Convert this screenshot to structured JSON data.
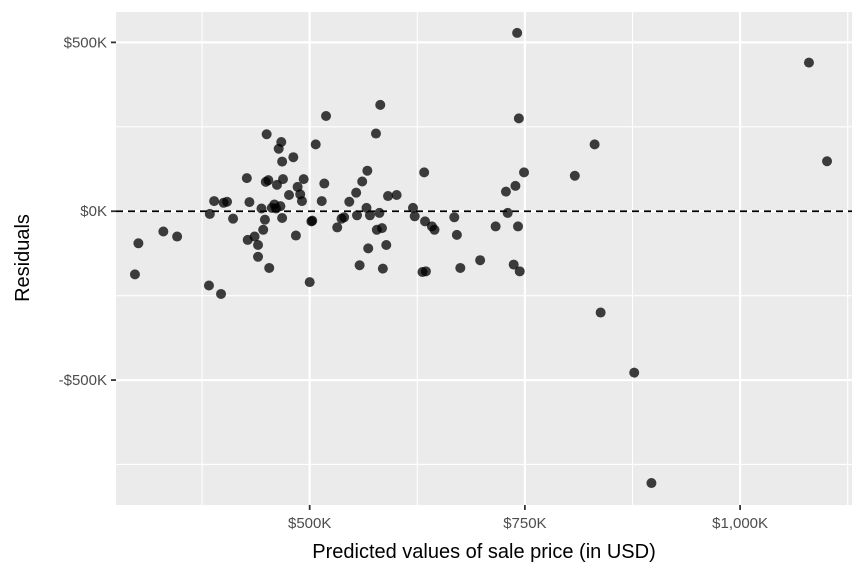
{
  "chart_data": {
    "type": "scatter",
    "title": "",
    "xlabel": "Predicted values of sale price (in USD)",
    "ylabel": "Residuals",
    "xlim": [
      275000,
      1130000
    ],
    "ylim": [
      -870000,
      590000
    ],
    "x_ticks": [
      {
        "value": 500000,
        "label": "$500K"
      },
      {
        "value": 750000,
        "label": "$750K"
      },
      {
        "value": 1000000,
        "label": "$1,000K"
      }
    ],
    "y_ticks": [
      {
        "value": 500000,
        "label": "$500K"
      },
      {
        "value": 0,
        "label": "$0K"
      },
      {
        "value": -500000,
        "label": "-$500K"
      }
    ],
    "reference_line": {
      "y": 0,
      "style": "dashed"
    },
    "grid": true,
    "colors": {
      "panel": "#ebebeb",
      "grid": "#ffffff",
      "point": "#000000",
      "point_opacity": 0.75
    },
    "points": [
      {
        "x": 297000,
        "y": -187000
      },
      {
        "x": 301000,
        "y": -95000
      },
      {
        "x": 330000,
        "y": -60000
      },
      {
        "x": 346000,
        "y": -75000
      },
      {
        "x": 383000,
        "y": -220000
      },
      {
        "x": 384000,
        "y": -8000
      },
      {
        "x": 389000,
        "y": 30000
      },
      {
        "x": 397000,
        "y": -245000
      },
      {
        "x": 400000,
        "y": 25000
      },
      {
        "x": 404000,
        "y": 28000
      },
      {
        "x": 411000,
        "y": -22000
      },
      {
        "x": 427000,
        "y": 98000
      },
      {
        "x": 428000,
        "y": -85000
      },
      {
        "x": 430000,
        "y": 27000
      },
      {
        "x": 436000,
        "y": -75000
      },
      {
        "x": 440000,
        "y": -100000
      },
      {
        "x": 440000,
        "y": -135000
      },
      {
        "x": 444000,
        "y": 8000
      },
      {
        "x": 446000,
        "y": -55000
      },
      {
        "x": 448000,
        "y": -25000
      },
      {
        "x": 449000,
        "y": 87000
      },
      {
        "x": 450000,
        "y": 228000
      },
      {
        "x": 452000,
        "y": 92000
      },
      {
        "x": 453000,
        "y": -168000
      },
      {
        "x": 456000,
        "y": 10000
      },
      {
        "x": 459000,
        "y": 20000
      },
      {
        "x": 461000,
        "y": 8000
      },
      {
        "x": 462000,
        "y": 78000
      },
      {
        "x": 464000,
        "y": 185000
      },
      {
        "x": 466000,
        "y": 15000
      },
      {
        "x": 467000,
        "y": 205000
      },
      {
        "x": 468000,
        "y": 147000
      },
      {
        "x": 468000,
        "y": -20000
      },
      {
        "x": 469000,
        "y": 95000
      },
      {
        "x": 476000,
        "y": 48000
      },
      {
        "x": 481000,
        "y": 160000
      },
      {
        "x": 484000,
        "y": -72000
      },
      {
        "x": 486000,
        "y": 72000
      },
      {
        "x": 489000,
        "y": 50000
      },
      {
        "x": 491000,
        "y": 30000
      },
      {
        "x": 493000,
        "y": 95000
      },
      {
        "x": 500000,
        "y": -210000
      },
      {
        "x": 502000,
        "y": -30000
      },
      {
        "x": 503000,
        "y": -28000
      },
      {
        "x": 507000,
        "y": 198000
      },
      {
        "x": 514000,
        "y": 30000
      },
      {
        "x": 517000,
        "y": 82000
      },
      {
        "x": 519000,
        "y": 282000
      },
      {
        "x": 532000,
        "y": -48000
      },
      {
        "x": 537000,
        "y": -22000
      },
      {
        "x": 540000,
        "y": -18000
      },
      {
        "x": 546000,
        "y": 28000
      },
      {
        "x": 554000,
        "y": 55000
      },
      {
        "x": 555000,
        "y": -12000
      },
      {
        "x": 558000,
        "y": -160000
      },
      {
        "x": 561000,
        "y": 88000
      },
      {
        "x": 566000,
        "y": 10000
      },
      {
        "x": 567000,
        "y": 120000
      },
      {
        "x": 568000,
        "y": -110000
      },
      {
        "x": 570000,
        "y": -12000
      },
      {
        "x": 577000,
        "y": 230000
      },
      {
        "x": 578000,
        "y": -55000
      },
      {
        "x": 581000,
        "y": -5000
      },
      {
        "x": 582000,
        "y": 315000
      },
      {
        "x": 584000,
        "y": -50000
      },
      {
        "x": 585000,
        "y": -170000
      },
      {
        "x": 589000,
        "y": -100000
      },
      {
        "x": 591000,
        "y": 45000
      },
      {
        "x": 601000,
        "y": 48000
      },
      {
        "x": 620000,
        "y": 10000
      },
      {
        "x": 622000,
        "y": -15000
      },
      {
        "x": 631000,
        "y": -180000
      },
      {
        "x": 633000,
        "y": 115000
      },
      {
        "x": 634000,
        "y": -30000
      },
      {
        "x": 635000,
        "y": -178000
      },
      {
        "x": 642000,
        "y": -45000
      },
      {
        "x": 645000,
        "y": -55000
      },
      {
        "x": 668000,
        "y": -18000
      },
      {
        "x": 671000,
        "y": -70000
      },
      {
        "x": 675000,
        "y": -168000
      },
      {
        "x": 698000,
        "y": -145000
      },
      {
        "x": 716000,
        "y": -45000
      },
      {
        "x": 728000,
        "y": 58000
      },
      {
        "x": 730000,
        "y": -5000
      },
      {
        "x": 737000,
        "y": -158000
      },
      {
        "x": 739000,
        "y": 75000
      },
      {
        "x": 741000,
        "y": 528000
      },
      {
        "x": 742000,
        "y": -45000
      },
      {
        "x": 743000,
        "y": 275000
      },
      {
        "x": 744000,
        "y": -178000
      },
      {
        "x": 749000,
        "y": 115000
      },
      {
        "x": 808000,
        "y": 105000
      },
      {
        "x": 831000,
        "y": 198000
      },
      {
        "x": 838000,
        "y": -300000
      },
      {
        "x": 877000,
        "y": -478000
      },
      {
        "x": 897000,
        "y": -805000
      },
      {
        "x": 1080000,
        "y": 440000
      },
      {
        "x": 1101000,
        "y": 148000
      }
    ]
  }
}
